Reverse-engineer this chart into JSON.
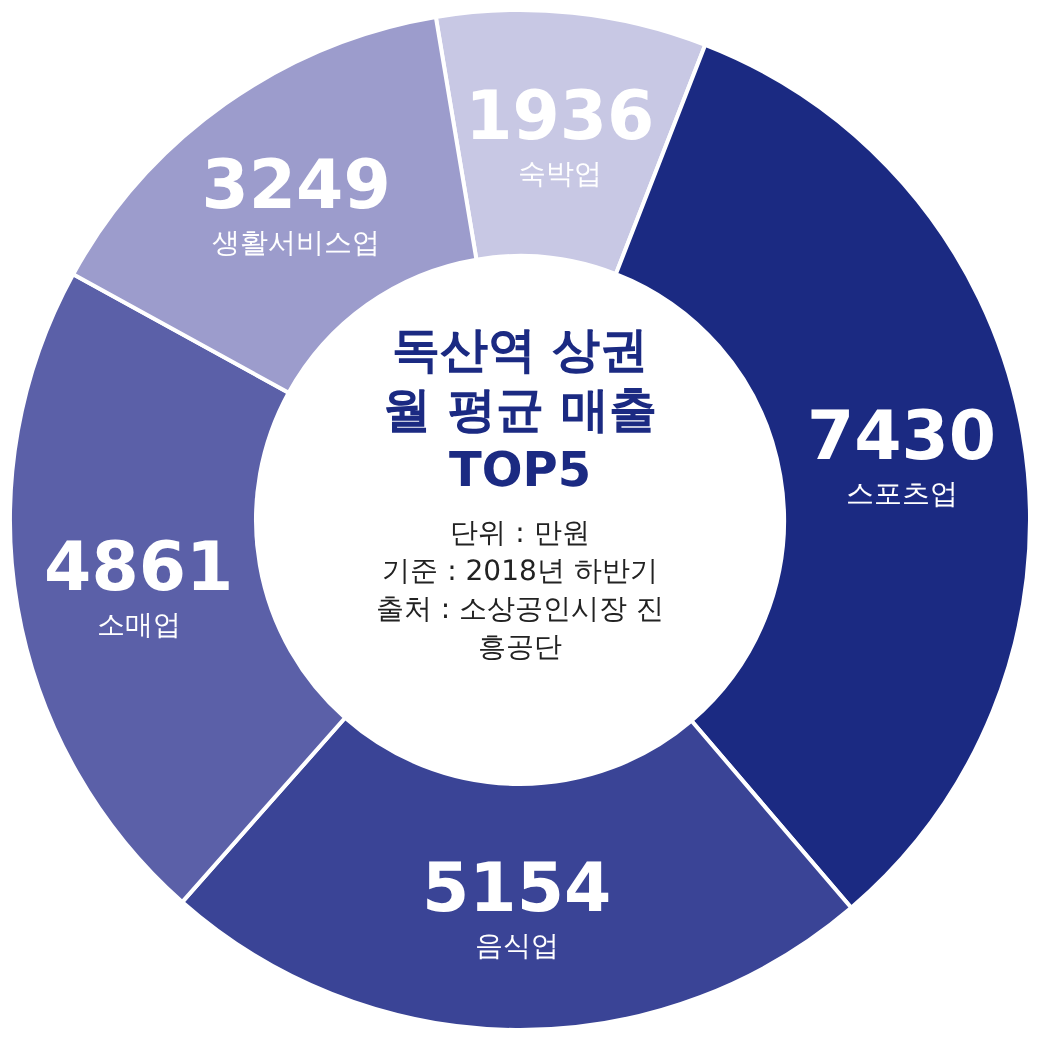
{
  "chart_data": {
    "type": "donut",
    "title": "독산역 상권 월 평균 매출 TOP5",
    "categories": [
      "숙박업",
      "스포츠업",
      "음식업",
      "소매업",
      "생활서비스업"
    ],
    "values": [
      1936,
      7430,
      5154,
      4861,
      3249
    ],
    "colors": [
      "#c8c8e4",
      "#1b2a82",
      "#3a4496",
      "#5b60a8",
      "#9c9ccc"
    ],
    "data_labels": true,
    "annotations": [
      "단위 : 만원",
      "기준 : 2018년 하반기",
      "출처 : 소상공인시장 진흥공단"
    ]
  }
}
